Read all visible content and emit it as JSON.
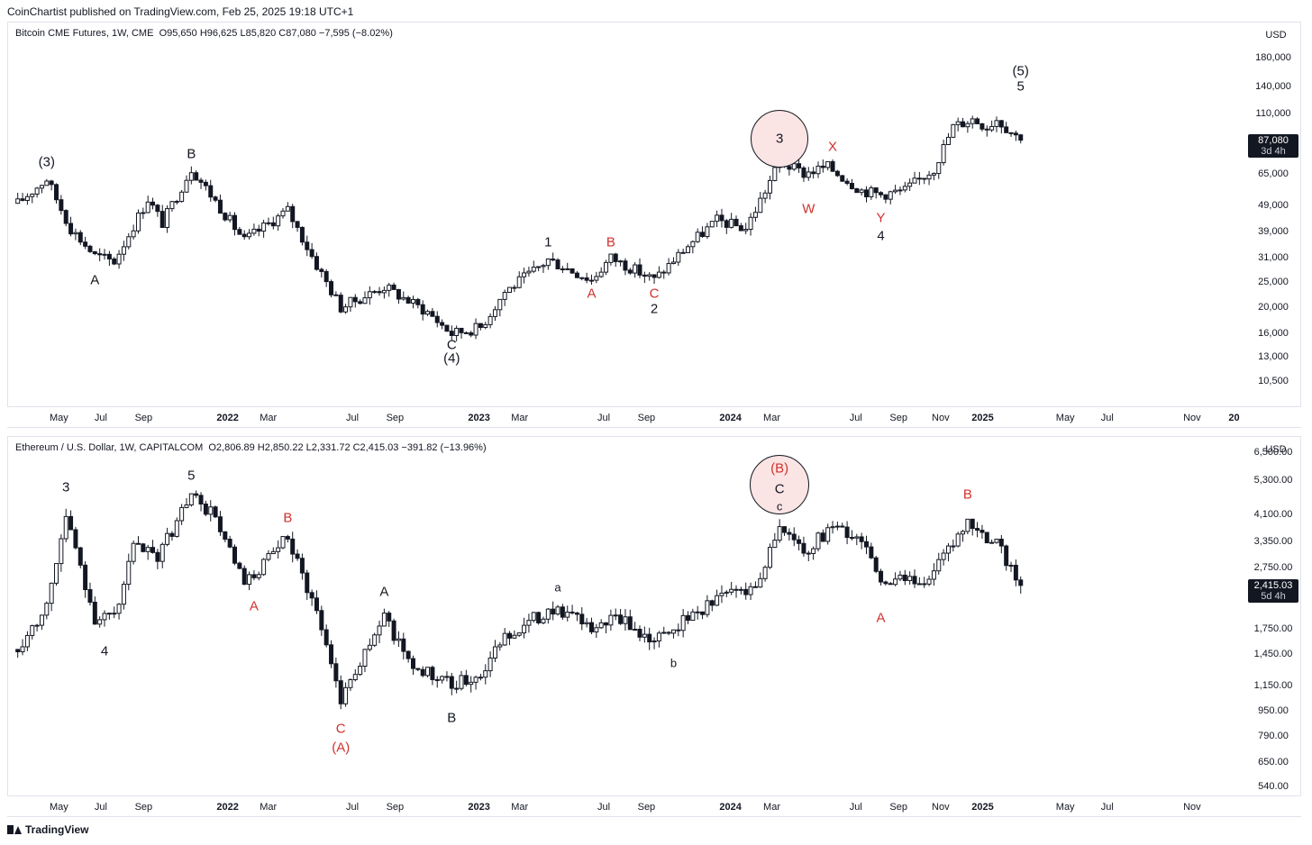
{
  "header": "CoinChartist published on TradingView.com, Feb 25, 2025 19:18 UTC+1",
  "footer": {
    "brand": "TradingView",
    "logo_icon": "tradingview-logo-icon"
  },
  "chart_data": [
    {
      "type": "candlestick",
      "title": "Bitcoin CME Futures, 1W, CME",
      "ohlc_text": "O95,650  H96,625  L85,820  C87,080  −7,595 (−8.02%)",
      "currency": "USD",
      "scale": "log",
      "ylim": [
        8800,
        230000
      ],
      "y_ticks": [
        "180,000",
        "140,000",
        "110,000",
        "87,080",
        "65,000",
        "49,000",
        "39,000",
        "31,000",
        "25,000",
        "20,000",
        "16,000",
        "13,000",
        "10,500"
      ],
      "y_tick_values": [
        180000,
        140000,
        110000,
        87080,
        65000,
        49000,
        39000,
        31000,
        25000,
        20000,
        16000,
        13000,
        10500
      ],
      "last_price": "87,080",
      "countdown": "3d 4h",
      "x_ticks": [
        "May",
        "Jul",
        "Sep",
        "2022",
        "Mar",
        "Jul",
        "Sep",
        "2023",
        "Mar",
        "Jul",
        "Sep",
        "2024",
        "Mar",
        "Jul",
        "Sep",
        "Nov",
        "2025",
        "May",
        "Jul",
        "Nov",
        "20"
      ],
      "anchors": [
        {
          "date": "2021-03-01",
          "price": 50000
        },
        {
          "date": "2021-04-12",
          "price": 62000
        },
        {
          "date": "2021-04-26",
          "price": 52000
        },
        {
          "date": "2021-05-17",
          "price": 40000
        },
        {
          "date": "2021-06-21",
          "price": 31500
        },
        {
          "date": "2021-07-19",
          "price": 30000
        },
        {
          "date": "2021-09-06",
          "price": 52000
        },
        {
          "date": "2021-09-27",
          "price": 42000
        },
        {
          "date": "2021-11-08",
          "price": 68000
        },
        {
          "date": "2022-01-24",
          "price": 36000
        },
        {
          "date": "2022-03-28",
          "price": 47000
        },
        {
          "date": "2022-05-09",
          "price": 29000
        },
        {
          "date": "2022-06-13",
          "price": 20000
        },
        {
          "date": "2022-08-15",
          "price": 24000
        },
        {
          "date": "2022-10-17",
          "price": 19200
        },
        {
          "date": "2022-11-21",
          "price": 15900
        },
        {
          "date": "2023-01-02",
          "price": 16800
        },
        {
          "date": "2023-02-06",
          "price": 23000
        },
        {
          "date": "2023-03-20",
          "price": 27500
        },
        {
          "date": "2023-04-10",
          "price": 30500
        },
        {
          "date": "2023-06-12",
          "price": 25500
        },
        {
          "date": "2023-07-10",
          "price": 31000
        },
        {
          "date": "2023-09-11",
          "price": 25500
        },
        {
          "date": "2023-10-30",
          "price": 34500
        },
        {
          "date": "2023-12-11",
          "price": 43000
        },
        {
          "date": "2024-01-22",
          "price": 40000
        },
        {
          "date": "2024-03-11",
          "price": 72000
        },
        {
          "date": "2024-04-15",
          "price": 65000
        },
        {
          "date": "2024-05-20",
          "price": 69000
        },
        {
          "date": "2024-07-08",
          "price": 56000
        },
        {
          "date": "2024-08-05",
          "price": 54000
        },
        {
          "date": "2024-09-09",
          "price": 56000
        },
        {
          "date": "2024-10-21",
          "price": 68000
        },
        {
          "date": "2024-11-18",
          "price": 98000
        },
        {
          "date": "2024-12-16",
          "price": 105000
        },
        {
          "date": "2025-01-06",
          "price": 98000
        },
        {
          "date": "2025-01-20",
          "price": 105000
        },
        {
          "date": "2025-02-24",
          "price": 87080
        }
      ],
      "wave_labels": [
        {
          "text": "(3)",
          "date": "2021-04-12",
          "price": 72000,
          "color": "black"
        },
        {
          "text": "A",
          "date": "2021-06-21",
          "price": 25500,
          "color": "black"
        },
        {
          "text": "B",
          "date": "2021-11-08",
          "price": 77000,
          "color": "black"
        },
        {
          "text": "C",
          "date": "2022-11-21",
          "price": 14400,
          "color": "black"
        },
        {
          "text": "(4)",
          "date": "2022-11-21",
          "price": 12800,
          "color": "black"
        },
        {
          "text": "1",
          "date": "2023-04-10",
          "price": 35500,
          "color": "black"
        },
        {
          "text": "A",
          "date": "2023-06-12",
          "price": 22500,
          "color": "red"
        },
        {
          "text": "B",
          "date": "2023-07-10",
          "price": 35500,
          "color": "red"
        },
        {
          "text": "C",
          "date": "2023-09-11",
          "price": 22500,
          "color": "red"
        },
        {
          "text": "2",
          "date": "2023-09-11",
          "price": 19800,
          "color": "black"
        },
        {
          "text": "3",
          "date": "2024-03-11",
          "price": 88000,
          "color": "black",
          "circled": true
        },
        {
          "text": "W",
          "date": "2024-04-22",
          "price": 47500,
          "color": "red"
        },
        {
          "text": "X",
          "date": "2024-05-27",
          "price": 82000,
          "color": "red"
        },
        {
          "text": "Y",
          "date": "2024-08-05",
          "price": 44000,
          "color": "red"
        },
        {
          "text": "4",
          "date": "2024-08-05",
          "price": 37500,
          "color": "black"
        },
        {
          "text": "(5)",
          "date": "2025-02-24",
          "price": 160000,
          "color": "black"
        },
        {
          "text": "5",
          "date": "2025-02-24",
          "price": 140000,
          "color": "black"
        }
      ]
    },
    {
      "type": "candlestick",
      "title": "Ethereum / U.S. Dollar, 1W, CAPITALCOM",
      "ohlc_text": "O2,806.89  H2,850.22  L2,331.72  C2,415.03  −391.82 (−13.96%)",
      "currency": "USD",
      "scale": "log",
      "ylim": [
        520,
        7000
      ],
      "y_ticks": [
        "6,500.00",
        "5,300.00",
        "4,100.00",
        "3,350.00",
        "2,750.00",
        "2,415.03",
        "1,750.00",
        "1,450.00",
        "1,150.00",
        "950.00",
        "790.00",
        "650.00",
        "540.00"
      ],
      "y_tick_values": [
        6500,
        5300,
        4100,
        3350,
        2750,
        2415.03,
        1750,
        1450,
        1150,
        950,
        790,
        650,
        540
      ],
      "last_price": "2,415.03",
      "countdown": "5d 4h",
      "x_ticks": [
        "May",
        "Jul",
        "Sep",
        "2022",
        "Mar",
        "Jul",
        "Sep",
        "2023",
        "Mar",
        "Jul",
        "Sep",
        "2024",
        "Mar",
        "Jul",
        "Sep",
        "Nov",
        "2025",
        "May",
        "Jul",
        "Nov"
      ],
      "anchors": [
        {
          "date": "2021-03-01",
          "price": 1500
        },
        {
          "date": "2021-04-12",
          "price": 2100
        },
        {
          "date": "2021-05-10",
          "price": 4000
        },
        {
          "date": "2021-06-21",
          "price": 1900
        },
        {
          "date": "2021-07-19",
          "price": 1900
        },
        {
          "date": "2021-08-16",
          "price": 3200
        },
        {
          "date": "2021-09-20",
          "price": 3000
        },
        {
          "date": "2021-11-08",
          "price": 4750
        },
        {
          "date": "2021-12-13",
          "price": 4000
        },
        {
          "date": "2022-01-24",
          "price": 2400
        },
        {
          "date": "2022-03-28",
          "price": 3450
        },
        {
          "date": "2022-05-09",
          "price": 2000
        },
        {
          "date": "2022-06-13",
          "price": 1050
        },
        {
          "date": "2022-08-15",
          "price": 1900
        },
        {
          "date": "2022-09-26",
          "price": 1320
        },
        {
          "date": "2022-11-21",
          "price": 1150
        },
        {
          "date": "2023-01-02",
          "price": 1250
        },
        {
          "date": "2023-02-06",
          "price": 1650
        },
        {
          "date": "2023-04-17",
          "price": 2050
        },
        {
          "date": "2023-06-12",
          "price": 1750
        },
        {
          "date": "2023-07-17",
          "price": 1900
        },
        {
          "date": "2023-09-11",
          "price": 1600
        },
        {
          "date": "2023-10-30",
          "price": 1900
        },
        {
          "date": "2023-12-25",
          "price": 2300
        },
        {
          "date": "2024-02-05",
          "price": 2400
        },
        {
          "date": "2024-03-11",
          "price": 3800
        },
        {
          "date": "2024-04-15",
          "price": 3100
        },
        {
          "date": "2024-05-27",
          "price": 3750
        },
        {
          "date": "2024-07-15",
          "price": 3300
        },
        {
          "date": "2024-08-05",
          "price": 2450
        },
        {
          "date": "2024-10-14",
          "price": 2550
        },
        {
          "date": "2024-12-09",
          "price": 3800
        },
        {
          "date": "2025-01-20",
          "price": 3300
        },
        {
          "date": "2025-02-24",
          "price": 2415
        }
      ],
      "wave_labels": [
        {
          "text": "3",
          "date": "2021-05-10",
          "price": 5000,
          "color": "black"
        },
        {
          "text": "4",
          "date": "2021-07-05",
          "price": 1480,
          "color": "black"
        },
        {
          "text": "5",
          "date": "2021-11-08",
          "price": 5450,
          "color": "black"
        },
        {
          "text": "B",
          "date": "2022-03-28",
          "price": 4000,
          "color": "red"
        },
        {
          "text": "A",
          "date": "2022-02-07",
          "price": 2070,
          "color": "red"
        },
        {
          "text": "A",
          "date": "2022-08-15",
          "price": 2300,
          "color": "black"
        },
        {
          "text": "C",
          "date": "2022-06-13",
          "price": 830,
          "color": "red"
        },
        {
          "text": "(A)",
          "date": "2022-06-13",
          "price": 720,
          "color": "red"
        },
        {
          "text": "B",
          "date": "2022-11-21",
          "price": 900,
          "color": "black"
        },
        {
          "text": "a",
          "date": "2023-04-24",
          "price": 2380,
          "color": "black",
          "small": true
        },
        {
          "text": "b",
          "date": "2023-10-09",
          "price": 1360,
          "color": "black",
          "small": true
        },
        {
          "text": "(B)",
          "date": "2024-03-11",
          "price": 5750,
          "color": "red",
          "circled": true
        },
        {
          "text": "C",
          "date": "2024-03-11",
          "price": 4950,
          "color": "black"
        },
        {
          "text": "c",
          "date": "2024-03-11",
          "price": 4350,
          "color": "black",
          "small": true
        },
        {
          "text": "A",
          "date": "2024-08-05",
          "price": 1900,
          "color": "red"
        },
        {
          "text": "B",
          "date": "2024-12-09",
          "price": 4750,
          "color": "red"
        }
      ]
    }
  ]
}
